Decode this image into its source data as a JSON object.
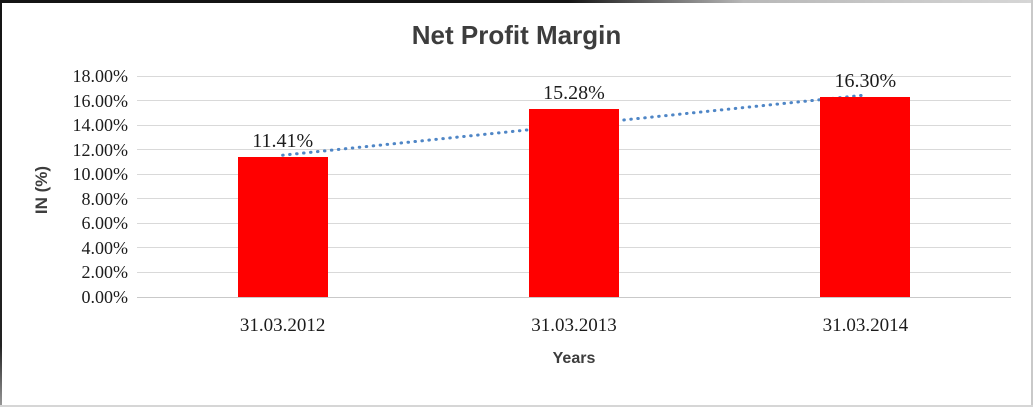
{
  "chart_data": {
    "type": "bar",
    "title": "Net Profit Margin",
    "xlabel": "Years",
    "ylabel": "IN (%)",
    "categories": [
      "31.03.2012",
      "31.03.2013",
      "31.03.2014"
    ],
    "values": [
      11.41,
      15.28,
      16.3
    ],
    "data_labels": [
      "11.41%",
      "15.28%",
      "16.30%"
    ],
    "ylim": [
      0,
      18
    ],
    "ytick_step": 2,
    "ytick_labels": [
      "0.00%",
      "2.00%",
      "4.00%",
      "6.00%",
      "8.00%",
      "10.00%",
      "12.00%",
      "14.00%",
      "16.00%",
      "18.00%"
    ],
    "grid": true,
    "legend": false,
    "bar_color": "#ff0000",
    "gridline_color": "#d9d9d9",
    "axisline_color": "#c9c9c9",
    "trendline": {
      "style": "dotted",
      "color": "#4f86c6",
      "start_value": 11.55,
      "end_value": 16.45
    }
  }
}
